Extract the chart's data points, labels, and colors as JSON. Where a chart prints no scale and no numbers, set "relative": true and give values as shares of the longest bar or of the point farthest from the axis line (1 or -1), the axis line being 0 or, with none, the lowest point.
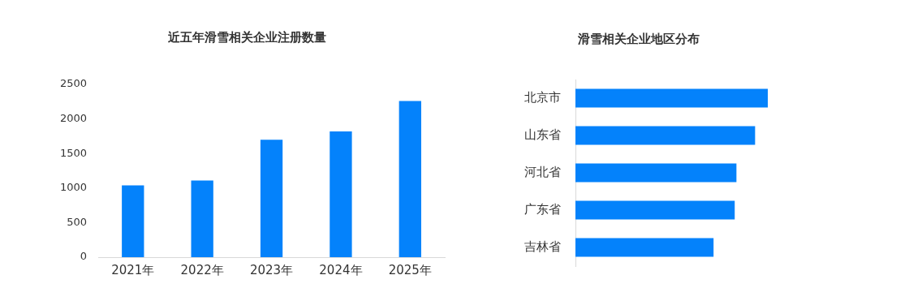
{
  "chart_data": [
    {
      "type": "bar",
      "title": "近五年滑雪相关企业注册数量",
      "categories": [
        "2021年",
        "2022年",
        "2023年",
        "2024年",
        "2025年"
      ],
      "values": [
        1040,
        1110,
        1700,
        1820,
        2260
      ],
      "color": "#0482fb",
      "ylim": [
        0,
        2500
      ],
      "yticks": [
        0,
        500,
        1000,
        1500,
        2000,
        2500
      ],
      "grid": false
    },
    {
      "type": "bar",
      "title": "滑雪相关企业地区分布",
      "orientation": "horizontal",
      "relative": true,
      "categories": [
        "北京市",
        "山东省",
        "河北省",
        "广东省",
        "吉林省"
      ],
      "values": [
        1,
        0.934,
        0.837,
        0.828,
        0.718
      ],
      "color": "#0482fb",
      "grid": false
    }
  ]
}
